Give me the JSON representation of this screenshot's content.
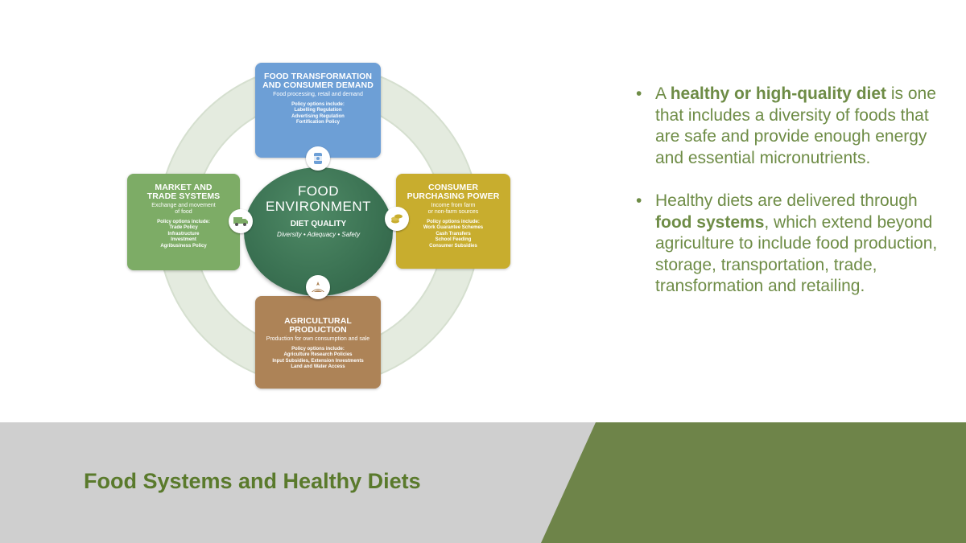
{
  "diagram": {
    "top": {
      "heading": [
        "FOOD TRANSFORMATION",
        "AND CONSUMER DEMAND"
      ],
      "sub": [
        "Food processing, retail and demand"
      ],
      "policy_label": "Policy options include:",
      "policies": [
        "Labelling Regulation",
        "Advertising Regulation",
        "Fortification Policy"
      ],
      "icon": "food-can-icon",
      "color": "#6d9fd6"
    },
    "left": {
      "heading": [
        "MARKET AND",
        "TRADE SYSTEMS"
      ],
      "sub": [
        "Exchange and movement",
        "of food"
      ],
      "policy_label": "Policy options include:",
      "policies": [
        "Trade Policy",
        "Infrastructure",
        "Investment",
        "Agribusiness Policy"
      ],
      "icon": "truck-icon",
      "color": "#7dac66"
    },
    "right": {
      "heading": [
        "CONSUMER",
        "PURCHASING POWER"
      ],
      "sub": [
        "Income from farm",
        "or non-farm sources"
      ],
      "policy_label": "Policy options include:",
      "policies": [
        "Work Guarantee Schemes",
        "Cash Transfers",
        "School Feeding",
        "Consumer Subsidies"
      ],
      "icon": "coins-icon",
      "color": "#c8ad2e"
    },
    "bottom": {
      "heading": [
        "AGRICULTURAL",
        "PRODUCTION"
      ],
      "sub": [
        "Production for own consumption and sale"
      ],
      "policy_label": "Policy options include:",
      "policies": [
        "Agriculture Research Policies",
        "Input Subsidies, Extension Investments",
        "Land and Water Access"
      ],
      "icon": "farm-field-icon",
      "color": "#ad8357"
    },
    "center": {
      "line1": "FOOD",
      "line2": "ENVIRONMENT",
      "quality": "DIET QUALITY",
      "tagline": "Diversity • Adequacy • Safety"
    }
  },
  "bullets": [
    {
      "pre": "A ",
      "bold": "healthy or high-quality diet",
      "post": " is one that includes a diversity of foods that are safe and provide enough energy and essential micronutrients."
    },
    {
      "pre": "Healthy diets are delivered through ",
      "bold": "food systems",
      "post": ", which extend beyond agriculture to include food production, storage, transportation, trade, transformation and retailing."
    }
  ],
  "title": "Food Systems and Healthy Diets",
  "colors": {
    "accent_green": "#6e8449",
    "title_green": "#5a7a2c",
    "text_green": "#6e8c46",
    "gray_bar": "#cfcfcf"
  }
}
